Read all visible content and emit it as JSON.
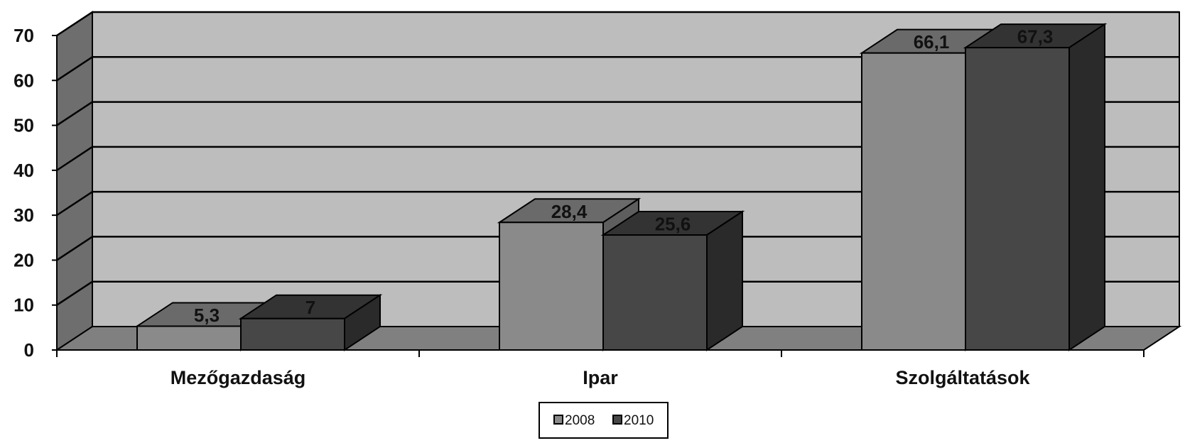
{
  "chart_data": {
    "type": "bar",
    "categories": [
      "Mezőgazdaság",
      "Ipar",
      "Szolgáltatások"
    ],
    "series": [
      {
        "name": "2008",
        "values": [
          5.3,
          28.4,
          66.1
        ],
        "labels": [
          "5,3",
          "28,4",
          "66,1"
        ]
      },
      {
        "name": "2010",
        "values": [
          7,
          25.6,
          67.3
        ],
        "labels": [
          "7",
          "25,6",
          "67,3"
        ]
      }
    ],
    "title": "",
    "xlabel": "",
    "ylabel": "",
    "ylim": [
      0,
      70
    ],
    "yticks": [
      0,
      10,
      20,
      30,
      40,
      50,
      60,
      70
    ],
    "grid": true,
    "legend_position": "bottom-center",
    "three_d": true,
    "colors": {
      "series_2008": "#8a8a8a",
      "series_2010": "#474747",
      "wall": "#bdbdbd",
      "side_wall": "#6e6e6e",
      "floor": "#808080"
    }
  }
}
